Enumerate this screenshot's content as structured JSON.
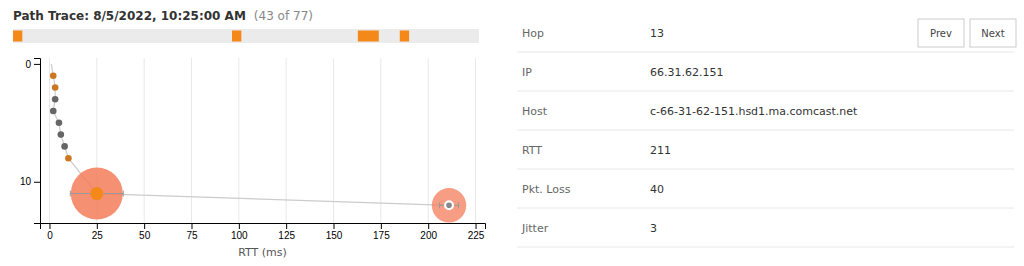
{
  "chart_data": [
    {
      "type": "scatter",
      "title": "Path Trace: 8/5/2022, 10:25:00 AM",
      "subtitle": "(43 of 77)",
      "xlabel": "RTT (ms)",
      "xlim": [
        -5,
        230
      ],
      "ylim": [
        13.5,
        -0.5
      ],
      "xticks": [
        0,
        25,
        50,
        75,
        100,
        125,
        150,
        175,
        200,
        225
      ],
      "yticks": [
        0,
        10
      ],
      "grid": "x",
      "series": [
        {
          "type": "line",
          "color": "#cccccc",
          "x": [
            1,
            2,
            3,
            3,
            2,
            5,
            6,
            8,
            10,
            25,
            211
          ],
          "values": [
            0,
            1,
            2,
            3,
            4,
            5,
            6,
            7,
            8,
            11,
            12
          ]
        },
        {
          "type": "scatter",
          "x": [
            2,
            3,
            3,
            2,
            5,
            6,
            8,
            10
          ],
          "values": [
            1,
            2,
            3,
            4,
            5,
            6,
            7,
            8
          ],
          "colors": [
            "#cc7722",
            "#cc7722",
            "#666666",
            "#666666",
            "#666666",
            "#666666",
            "#666666",
            "#cc7722"
          ]
        },
        {
          "type": "bubble",
          "color": "#f47c5a",
          "x": [
            25,
            211
          ],
          "values": [
            11,
            12
          ],
          "sizes": [
            1600,
            700
          ],
          "xerr": [
            14,
            5
          ],
          "yerr": [
            0.45,
            0.2
          ]
        }
      ]
    },
    {
      "type": "timeline",
      "color": "#f4891a",
      "xlim": [
        0,
        1
      ],
      "x": [
        0.0,
        0.47,
        0.74,
        0.83
      ],
      "widths": [
        0.02,
        0.02,
        0.045,
        0.02
      ],
      "tick_labels": false
    },
    {
      "type": "table",
      "rows": [
        [
          "Hop",
          "13"
        ],
        [
          "IP",
          "66.31.62.151"
        ],
        [
          "Host",
          "c-66-31-62-151.hsd1.ma.comcast.net"
        ],
        [
          "RTT",
          "211"
        ],
        [
          "Pkt. Loss",
          "40"
        ],
        [
          "Jitter",
          "3"
        ]
      ],
      "annotations": [
        "Prev",
        "Next"
      ]
    }
  ]
}
